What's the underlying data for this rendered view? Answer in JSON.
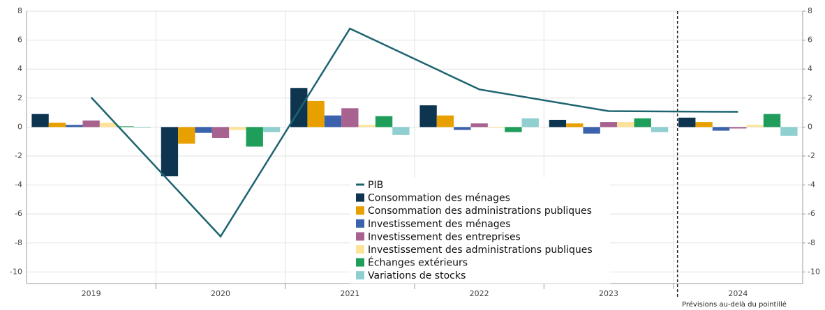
{
  "chart_data": {
    "type": "bar",
    "categories": [
      "2019",
      "2020",
      "2021",
      "2022",
      "2023",
      "2024"
    ],
    "series": [
      {
        "name": "PIB",
        "type": "line",
        "color": "#1d6470",
        "values": [
          2.05,
          -7.55,
          6.8,
          2.6,
          1.1,
          1.05
        ]
      },
      {
        "name": "Consommation des ménages",
        "color": "#0d3550",
        "values": [
          0.9,
          -3.4,
          2.7,
          1.5,
          0.5,
          0.65
        ]
      },
      {
        "name": "Consommation des administrations publiques",
        "color": "#e8a000",
        "values": [
          0.3,
          -1.15,
          1.8,
          0.8,
          0.25,
          0.35
        ]
      },
      {
        "name": "Investissement des ménages",
        "color": "#3a62ad",
        "values": [
          0.15,
          -0.4,
          0.8,
          -0.2,
          -0.45,
          -0.25
        ]
      },
      {
        "name": "Investissement des entreprises",
        "color": "#a8628f",
        "values": [
          0.45,
          -0.75,
          1.3,
          0.25,
          0.35,
          -0.1
        ]
      },
      {
        "name": "Investissement des administrations publiques",
        "color": "#fbe49a",
        "values": [
          0.3,
          -0.2,
          0.15,
          -0.05,
          0.35,
          0.15
        ]
      },
      {
        "name": "Échanges extérieurs",
        "color": "#1e9e5a",
        "values": [
          0.05,
          -1.35,
          0.75,
          -0.35,
          0.6,
          0.9
        ]
      },
      {
        "name": "Variations de stocks",
        "color": "#90cfcf",
        "values": [
          -0.05,
          -0.35,
          -0.55,
          0.6,
          -0.35,
          -0.6
        ]
      }
    ],
    "ylim": [
      -10.8,
      8
    ],
    "yticks": [
      -10,
      -8,
      -6,
      -4,
      -2,
      0,
      2,
      4,
      6,
      8
    ],
    "y2lim": [
      -10.8,
      8
    ],
    "y2ticks": [
      -10,
      -8,
      -6,
      -4,
      -2,
      0,
      2,
      4,
      6,
      8
    ],
    "grid": true,
    "annotation": "Prévisions au-delà du pointillé"
  }
}
